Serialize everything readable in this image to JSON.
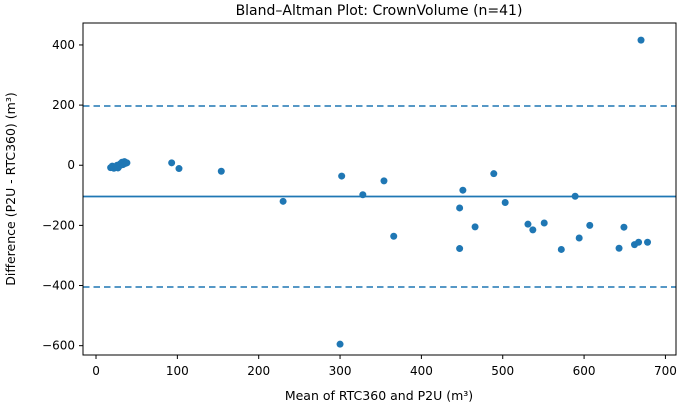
{
  "chart_data": {
    "type": "scatter",
    "title": "Bland–Altman Plot: CrownVolume (n=41)",
    "xlabel": "Mean of RTC360 and P2U (m³)",
    "ylabel": "Difference (P2U - RTC360) (m³)",
    "n": 41,
    "xlim": [
      -16,
      713
    ],
    "ylim": [
      -631,
      473
    ],
    "x_ticks": [
      0,
      100,
      200,
      300,
      400,
      500,
      600,
      700
    ],
    "y_ticks": [
      -600,
      -400,
      -200,
      0,
      200,
      400
    ],
    "grid": false,
    "legend": "none",
    "marker_color": "#1f77b4",
    "line_color": "#1f77b4",
    "mean_diff": -104,
    "upper_loa": 197,
    "lower_loa": -405,
    "points": [
      [
        18,
        -8
      ],
      [
        20,
        -3
      ],
      [
        22,
        -10
      ],
      [
        24,
        -5
      ],
      [
        26,
        0
      ],
      [
        27,
        -9
      ],
      [
        29,
        -2
      ],
      [
        30,
        5
      ],
      [
        32,
        10
      ],
      [
        33,
        2
      ],
      [
        35,
        12
      ],
      [
        36,
        6
      ],
      [
        38,
        8
      ],
      [
        93,
        8
      ],
      [
        102,
        -11
      ],
      [
        154,
        -20
      ],
      [
        230,
        -120
      ],
      [
        300,
        -595
      ],
      [
        302,
        -36
      ],
      [
        328,
        -98
      ],
      [
        354,
        -52
      ],
      [
        366,
        -236
      ],
      [
        447,
        -142
      ],
      [
        447,
        -277
      ],
      [
        451,
        -83
      ],
      [
        466,
        -205
      ],
      [
        489,
        -28
      ],
      [
        503,
        -124
      ],
      [
        531,
        -196
      ],
      [
        537,
        -215
      ],
      [
        551,
        -192
      ],
      [
        572,
        -280
      ],
      [
        589,
        -103
      ],
      [
        594,
        -242
      ],
      [
        607,
        -200
      ],
      [
        643,
        -276
      ],
      [
        649,
        -206
      ],
      [
        662,
        -264
      ],
      [
        667,
        -256
      ],
      [
        670,
        416
      ],
      [
        678,
        -256
      ]
    ]
  }
}
